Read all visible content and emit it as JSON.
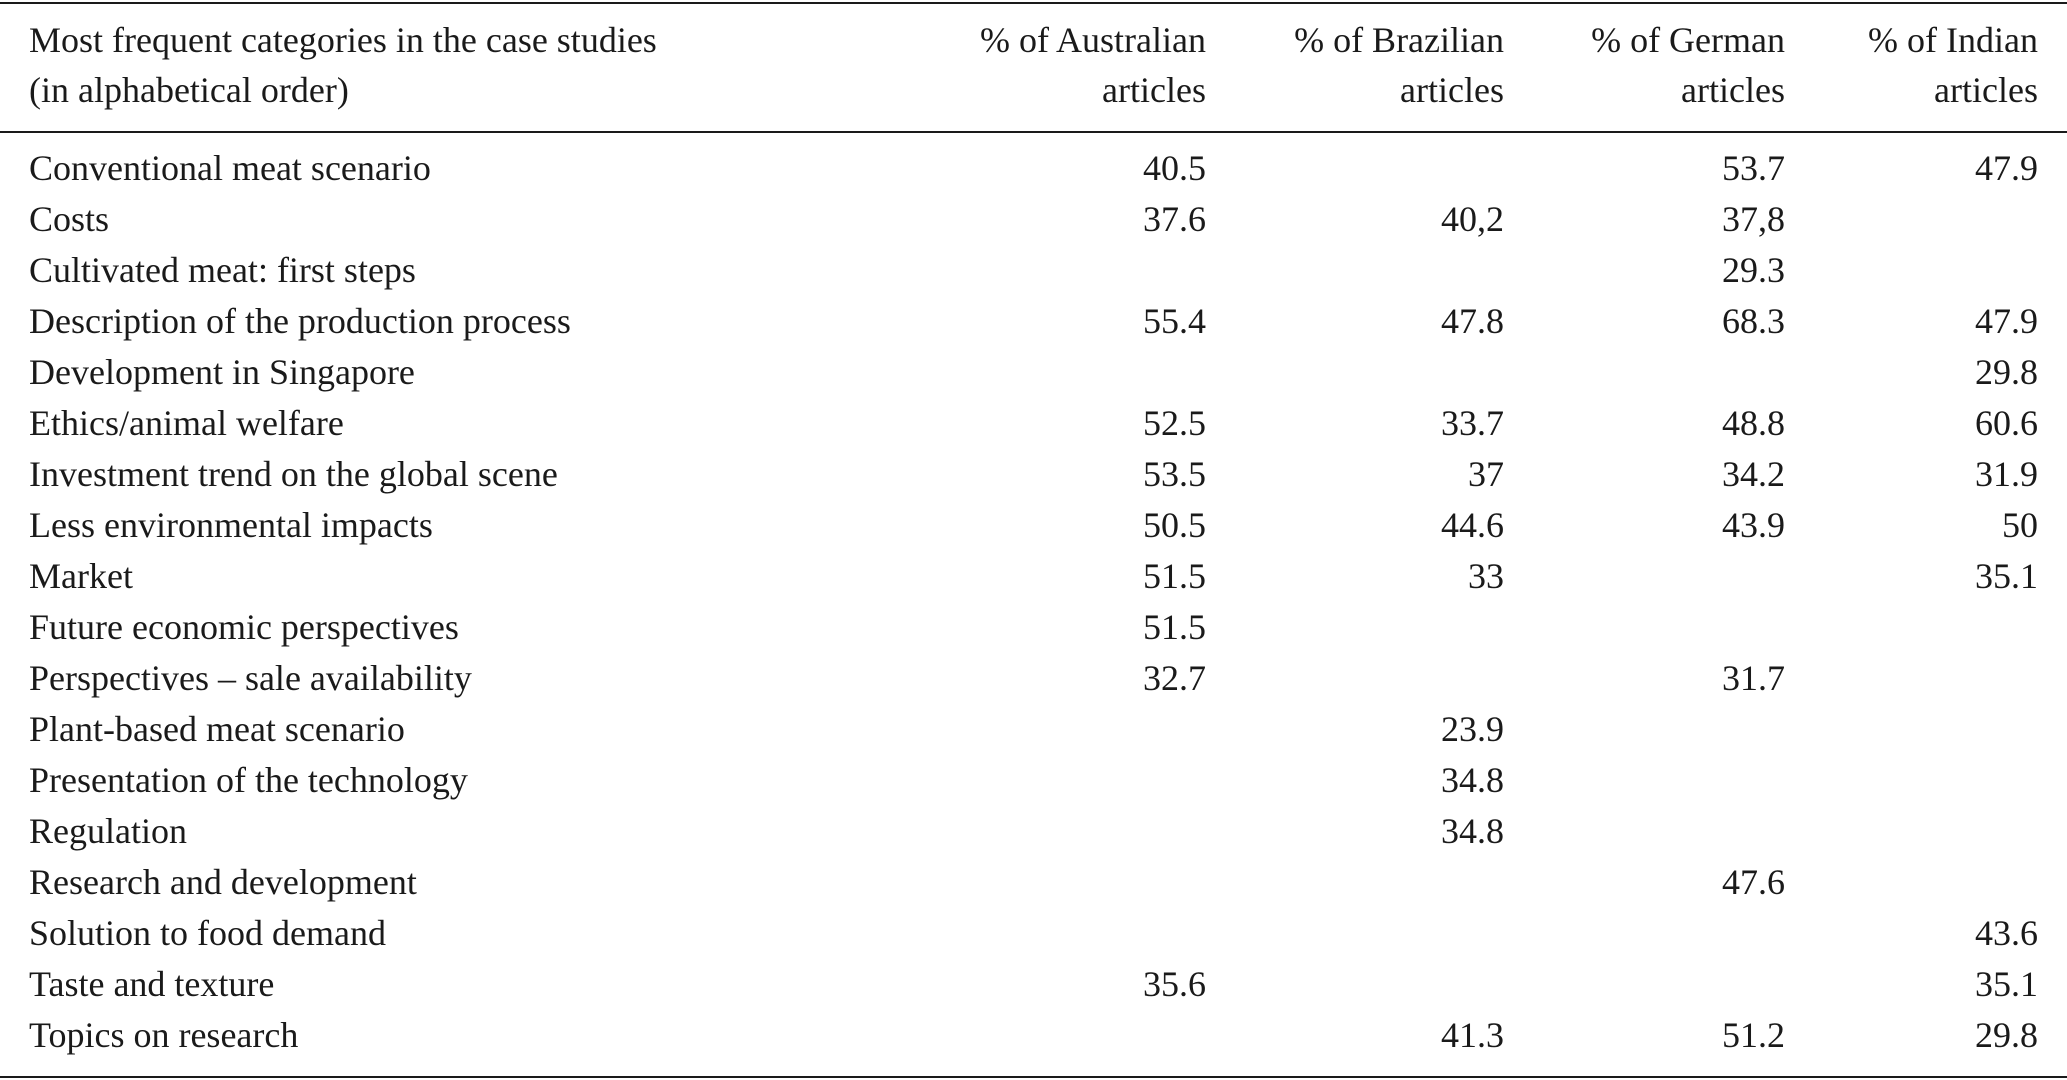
{
  "table": {
    "header": [
      [
        "Most frequent categories in the case studies",
        "(in alphabetical order)"
      ],
      [
        "% of Australian",
        "articles"
      ],
      [
        "% of Brazilian",
        "articles"
      ],
      [
        "% of German",
        "articles"
      ],
      [
        "% of Indian",
        "articles"
      ]
    ],
    "rows": [
      [
        "Conventional meat scenario",
        "40.5",
        null,
        "53.7",
        "47.9"
      ],
      [
        "Costs",
        "37.6",
        "40,2",
        "37,8",
        null
      ],
      [
        "Cultivated meat: first steps",
        null,
        null,
        "29.3",
        null
      ],
      [
        "Description of the production process",
        "55.4",
        "47.8",
        "68.3",
        "47.9"
      ],
      [
        "Development in Singapore",
        null,
        null,
        null,
        "29.8"
      ],
      [
        "Ethics/animal welfare",
        "52.5",
        "33.7",
        "48.8",
        "60.6"
      ],
      [
        "Investment trend on the global scene",
        "53.5",
        "37",
        "34.2",
        "31.9"
      ],
      [
        "Less environmental impacts",
        "50.5",
        "44.6",
        "43.9",
        "50"
      ],
      [
        "Market",
        "51.5",
        "33",
        null,
        "35.1"
      ],
      [
        "Future economic perspectives",
        "51.5",
        null,
        null,
        null
      ],
      [
        "Perspectives – sale availability",
        "32.7",
        null,
        "31.7",
        null
      ],
      [
        "Plant-based meat scenario",
        null,
        "23.9",
        null,
        null
      ],
      [
        "Presentation of the technology",
        null,
        "34.8",
        null,
        null
      ],
      [
        "Regulation",
        null,
        "34.8",
        null,
        null
      ],
      [
        "Research and development",
        null,
        null,
        "47.6",
        null
      ],
      [
        "Solution to food demand",
        null,
        null,
        null,
        "43.6"
      ],
      [
        "Taste and texture",
        "35.6",
        null,
        null,
        "35.1"
      ],
      [
        "Topics on research",
        null,
        "41.3",
        "51.2",
        "29.8"
      ]
    ]
  }
}
